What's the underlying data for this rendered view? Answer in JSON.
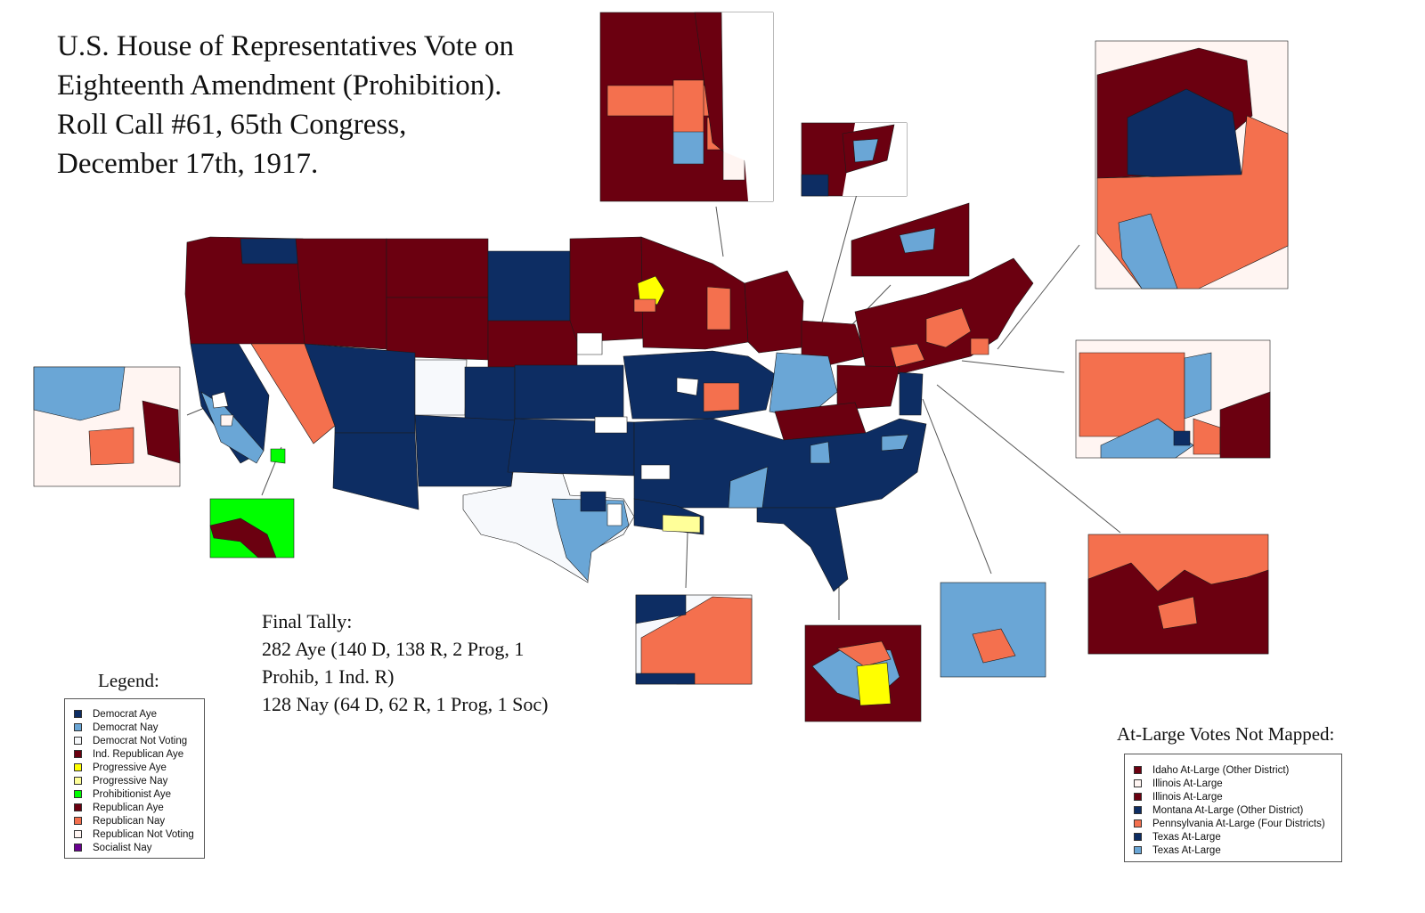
{
  "title_lines": [
    "U.S. House of Representatives Vote on",
    "Eighteenth Amendment (Prohibition).",
    "Roll Call #61, 65th Congress,",
    "December 17th, 1917."
  ],
  "tally": {
    "lines": [
      "Final Tally:",
      "282 Aye (140 D, 138 R, 2 Prog, 1",
      "Prohib, 1 Ind. R)",
      "128 Nay (64 D, 62 R, 1 Prog, 1 Soc)"
    ]
  },
  "legend": {
    "title": "Legend:",
    "items": [
      {
        "label": "Democrat Aye",
        "color": "#0d2d63"
      },
      {
        "label": "Democrat Nay",
        "color": "#6aa6d6"
      },
      {
        "label": "Democrat Not Voting",
        "color": "#f7f9fc"
      },
      {
        "label": "Ind. Republican Aye",
        "color": "#6b0010"
      },
      {
        "label": "Progressive Aye",
        "color": "#ffff00"
      },
      {
        "label": "Progressive Nay",
        "color": "#ffff99"
      },
      {
        "label": "Prohibitionist Aye",
        "color": "#00ff00"
      },
      {
        "label": "Republican Aye",
        "color": "#6b0010"
      },
      {
        "label": "Republican Nay",
        "color": "#f4704e"
      },
      {
        "label": "Republican Not Voting",
        "color": "#fff5f2"
      },
      {
        "label": "Socialist Nay",
        "color": "#6a0090"
      }
    ]
  },
  "at_large": {
    "title": "At-Large Votes Not Mapped:",
    "items": [
      {
        "label": "Idaho At-Large (Other District)",
        "color": "#6b0010"
      },
      {
        "label": "Illinois At-Large",
        "color": "#fff5f2"
      },
      {
        "label": "Illinois At-Large",
        "color": "#6b0010"
      },
      {
        "label": "Montana At-Large (Other District)",
        "color": "#0d2d63"
      },
      {
        "label": "Pennsylvania At-Large (Four Districts)",
        "color": "#f4704e"
      },
      {
        "label": "Texas At-Large",
        "color": "#0d2d63"
      },
      {
        "label": "Texas At-Large",
        "color": "#6aa6d6"
      }
    ]
  },
  "colors": {
    "dem_aye": "#0d2d63",
    "dem_nay": "#6aa6d6",
    "not_voting": "#f7f9fc",
    "rep_aye": "#6b0010",
    "rep_nay": "#f4704e",
    "prog_aye": "#ffff00",
    "prog_nay": "#ffff99",
    "prohib_aye": "#00ff00"
  }
}
